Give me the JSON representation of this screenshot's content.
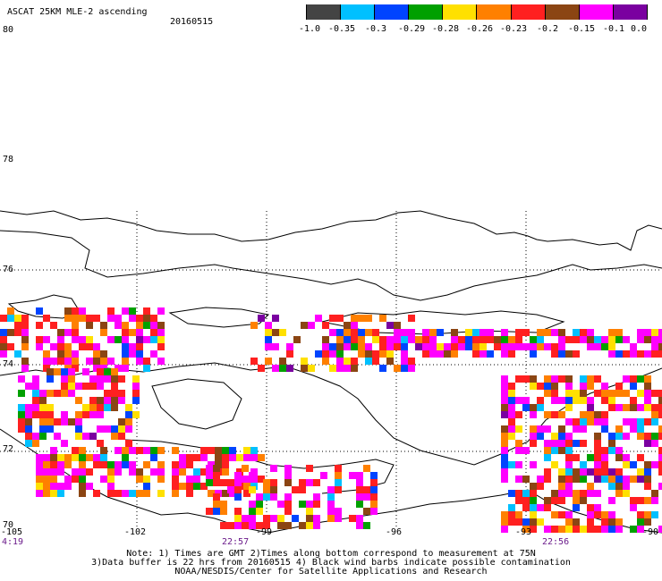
{
  "header": {
    "title": "ASCAT 25KM MLE-2 ascending",
    "date": "20160515"
  },
  "colorbar": {
    "colors": [
      "#444444",
      "#00c0ff",
      "#0044ff",
      "#00a000",
      "#ffe000",
      "#ff8000",
      "#ff2020",
      "#8b4513",
      "#ff00ff",
      "#7a00a0"
    ],
    "labels": [
      "-1.0",
      "-0.35",
      "-0.3",
      "-0.29",
      "-0.28",
      "-0.26",
      "-0.23",
      "-0.2",
      "-0.15",
      "-0.1",
      "0.0"
    ]
  },
  "axes": {
    "lat_labels": [
      "80",
      "78",
      "76",
      "74",
      "72",
      "70"
    ],
    "lon_labels": [
      "-105",
      "-102",
      "-99",
      "-96",
      "-93",
      "-90"
    ],
    "time_labels": [
      "4:19",
      "22:57",
      "22:56"
    ]
  },
  "notes": {
    "line1": "Note: 1) Times are GMT 2)Times along bottom correspond to measurement at 75N",
    "line2": "3)Data buffer is 22 hrs from 20160515 4) Black wind barbs indicate possible contamination",
    "line3": "NOAA/NESDIS/Center for Satellite Applications and Research"
  }
}
